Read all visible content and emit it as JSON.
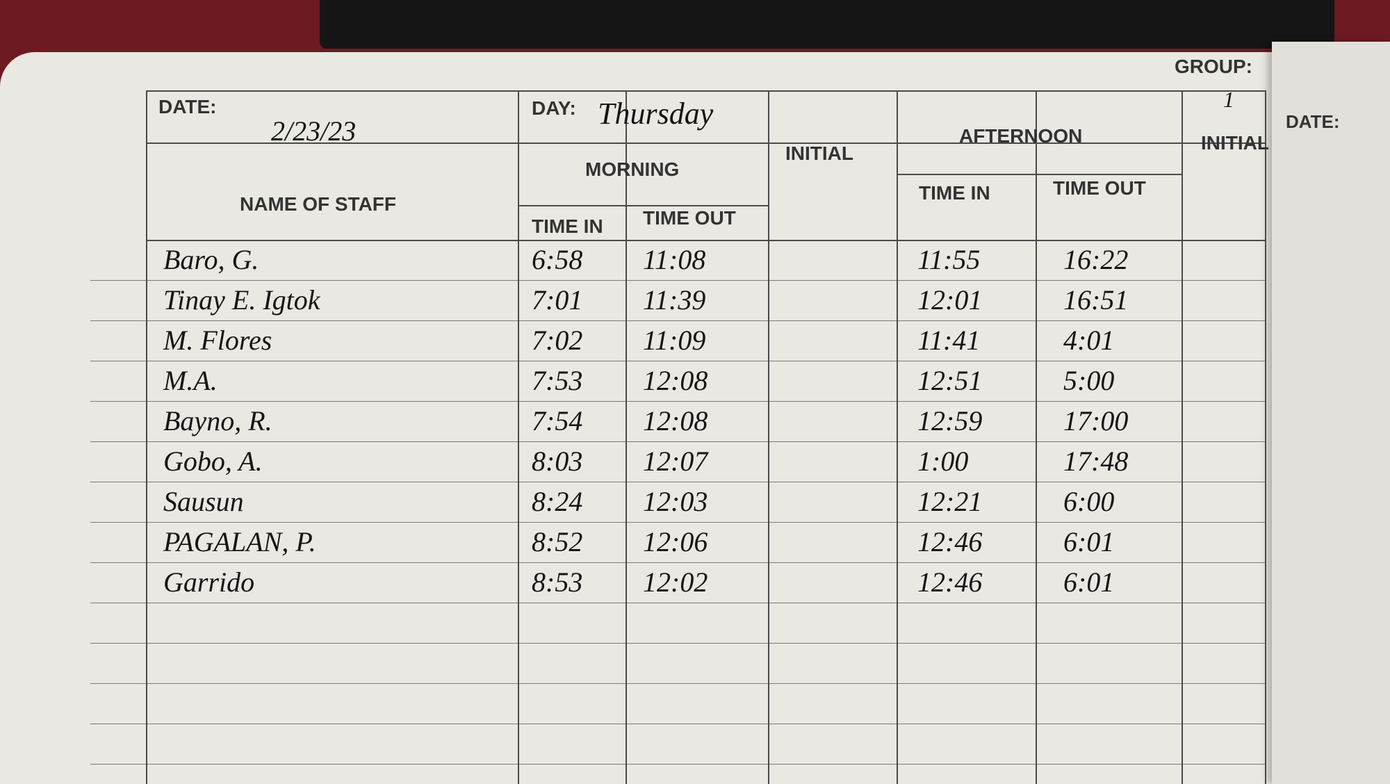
{
  "header": {
    "date_label": "DATE:",
    "date": "2/23/23",
    "day_label": "DAY:",
    "day": "Thursday",
    "group_label": "GROUP:",
    "group": "1"
  },
  "columns": {
    "name": "NAME OF STAFF",
    "morning": "MORNING",
    "morning_in": "TIME IN",
    "morning_out": "TIME OUT",
    "morning_initial": "INITIAL",
    "afternoon": "AFTERNOON",
    "afternoon_in": "TIME IN",
    "afternoon_out": "TIME OUT",
    "afternoon_initial": "INITIAL"
  },
  "table": {
    "rows": [
      [
        "Baro, G.",
        "6:58",
        "11:08",
        "11:55",
        "16:22"
      ],
      [
        "Tinay E. Igtok",
        "7:01",
        "11:39",
        "12:01",
        "16:51"
      ],
      [
        "M. Flores",
        "7:02",
        "11:09",
        "11:41",
        "4:01"
      ],
      [
        "M.A.",
        "7:53",
        "12:08",
        "12:51",
        "5:00"
      ],
      [
        "Bayno, R.",
        "7:54",
        "12:08",
        "12:59",
        "17:00"
      ],
      [
        "Gobo, A.",
        "8:03",
        "12:07",
        "1:00",
        "17:48"
      ],
      [
        "Sausun",
        "8:24",
        "12:03",
        "12:21",
        "6:00"
      ],
      [
        "PAGALAN, P.",
        "8:52",
        "12:06",
        "12:46",
        "6:01"
      ],
      [
        "Garrido",
        "8:53",
        "12:02",
        "12:46",
        "6:01"
      ]
    ]
  },
  "right_page": {
    "date_label": "DATE:"
  }
}
